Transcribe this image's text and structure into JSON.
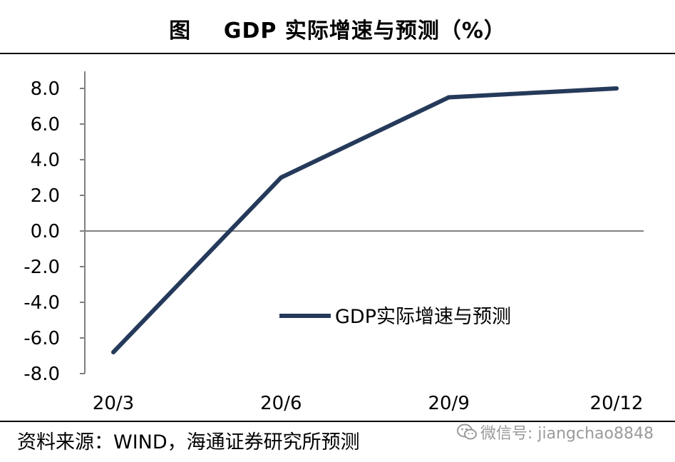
{
  "title": "图    GDP 实际增速与预测（%）",
  "source": "资料来源：WIND，海通证券研究所预测",
  "watermark": {
    "text": "微信号: jiangchao8848",
    "icon": "wechat-icon"
  },
  "colors": {
    "series": "#253a5a",
    "axis": "#808080",
    "text": "#000000"
  },
  "chart_data": {
    "type": "line",
    "title": "",
    "xlabel": "",
    "ylabel": "",
    "categories": [
      "20/3",
      "20/6",
      "20/9",
      "20/12"
    ],
    "ylim": [
      -8.0,
      8.0
    ],
    "yticks": [
      8.0,
      6.0,
      4.0,
      2.0,
      0.0,
      -2.0,
      -4.0,
      -6.0,
      -8.0
    ],
    "ytick_labels": [
      "8.0",
      "6.0",
      "4.0",
      "2.0",
      "0.0",
      "-2.0",
      "-4.0",
      "-6.0",
      "-8.0"
    ],
    "grid": false,
    "legend": "center-right",
    "series": [
      {
        "name": "GDP实际增速与预测",
        "values": [
          -6.8,
          3.0,
          7.5,
          8.0
        ]
      }
    ]
  }
}
